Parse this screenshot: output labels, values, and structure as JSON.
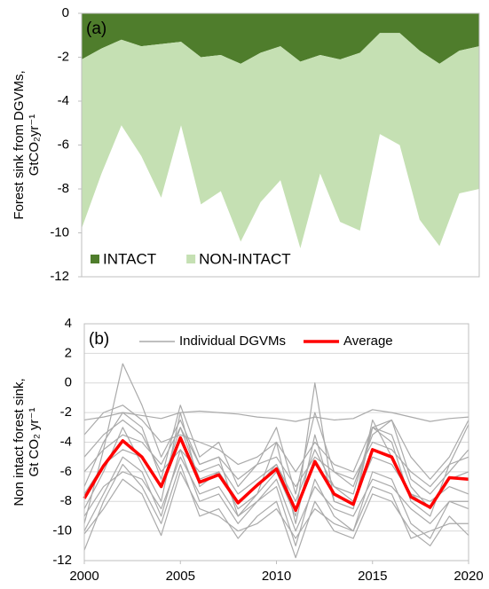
{
  "chart_data": [
    {
      "type": "area",
      "stacked": true,
      "panel_label": "(a)",
      "ylabel": [
        "Forest sink from DGVMs,",
        "GtCO₂yr⁻¹"
      ],
      "x": [
        2000,
        2001,
        2002,
        2003,
        2004,
        2005,
        2006,
        2007,
        2008,
        2009,
        2010,
        2011,
        2012,
        2013,
        2014,
        2015,
        2016,
        2017,
        2018,
        2019,
        2020
      ],
      "xlim": [
        2000,
        2020
      ],
      "ylim": [
        -12,
        0
      ],
      "yticks": [
        0,
        -2,
        -4,
        -6,
        -8,
        -10,
        -12
      ],
      "grid": false,
      "series": [
        {
          "name": "INTACT",
          "color": "#4f7d2c",
          "values": [
            -2.1,
            -1.6,
            -1.2,
            -1.5,
            -1.4,
            -1.3,
            -2.0,
            -1.9,
            -2.3,
            -1.8,
            -1.5,
            -2.2,
            -1.9,
            -2.1,
            -1.8,
            -0.9,
            -0.9,
            -1.7,
            -2.3,
            -1.7,
            -1.5
          ]
        },
        {
          "name": "NON-INTACT",
          "color": "#c5e0b3",
          "values": [
            -7.7,
            -5.7,
            -3.9,
            -5.0,
            -7.0,
            -3.8,
            -6.7,
            -6.2,
            -8.1,
            -6.8,
            -6.1,
            -8.5,
            -5.4,
            -7.4,
            -8.1,
            -4.6,
            -5.1,
            -7.7,
            -8.3,
            -6.5,
            -6.5
          ]
        }
      ]
    },
    {
      "type": "line",
      "panel_label": "(b)",
      "ylabel": [
        "Non intact forest sink,",
        "Gt CO₂ yr⁻¹"
      ],
      "x": [
        2000,
        2001,
        2002,
        2003,
        2004,
        2005,
        2006,
        2007,
        2008,
        2009,
        2010,
        2011,
        2012,
        2013,
        2014,
        2015,
        2016,
        2017,
        2018,
        2019,
        2020
      ],
      "xlim": [
        2000,
        2020
      ],
      "xticks": [
        2000,
        2005,
        2010,
        2015,
        2020
      ],
      "ylim": [
        -12,
        4
      ],
      "yticks": [
        4,
        2,
        0,
        -2,
        -4,
        -6,
        -8,
        -10,
        -12
      ],
      "grid": true,
      "series": [
        {
          "name": "Individual DGVMs",
          "color": "#aaaaaa",
          "values": [
            [
              -2.5,
              -2.3,
              -2.0,
              -2.2,
              -2.4,
              -2.0,
              -1.9,
              -2.0,
              -2.1,
              -2.3,
              -2.4,
              -2.6,
              -2.3,
              -2.5,
              -2.4,
              -1.8,
              -2.0,
              -2.3,
              -2.6,
              -2.4,
              -2.3
            ],
            [
              -9.5,
              -4.5,
              1.3,
              -1.5,
              -5.0,
              -2.5,
              -5.5,
              -5.0,
              -9.0,
              -7.5,
              -4.0,
              -9.5,
              -3.5,
              -8.0,
              -8.5,
              -3.0,
              -4.0,
              -8.0,
              -9.0,
              -5.5,
              -2.8
            ],
            [
              -7.0,
              -4.0,
              -2.0,
              -3.0,
              -6.5,
              -1.5,
              -5.0,
              -4.0,
              -7.0,
              -5.5,
              -3.0,
              -7.5,
              -2.0,
              -6.0,
              -7.0,
              -3.5,
              -2.5,
              -6.5,
              -7.5,
              -6.0,
              -4.5
            ],
            [
              -10.0,
              -7.5,
              -5.0,
              -6.0,
              -9.0,
              -4.5,
              -8.0,
              -7.5,
              -9.5,
              -8.0,
              -7.0,
              -11.0,
              -6.5,
              -9.0,
              -10.0,
              -6.0,
              -6.5,
              -9.5,
              -10.5,
              -8.0,
              -8.5
            ],
            [
              -6.0,
              -4.5,
              -3.5,
              -4.0,
              -5.5,
              -3.0,
              -5.5,
              -5.0,
              -6.5,
              -5.5,
              -5.0,
              -7.0,
              -5.0,
              -6.0,
              -6.5,
              -4.0,
              -4.5,
              -6.0,
              -7.0,
              -5.5,
              -5.0
            ],
            [
              -11.3,
              -8.0,
              -5.5,
              -7.0,
              -9.5,
              -5.5,
              -9.0,
              -8.5,
              -10.5,
              -9.0,
              -8.0,
              -11.8,
              -8.0,
              -10.0,
              -10.5,
              -7.5,
              -8.0,
              -10.0,
              -11.0,
              -9.0,
              -10.3
            ],
            [
              -8.5,
              -6.0,
              -3.0,
              -5.5,
              -8.0,
              -2.0,
              -7.0,
              -6.0,
              -8.5,
              -7.5,
              -6.0,
              -9.0,
              0.0,
              -8.0,
              -8.5,
              -2.5,
              -5.0,
              -7.5,
              -8.0,
              -7.0,
              -7.5
            ],
            [
              -5.0,
              -3.5,
              -2.5,
              -3.5,
              -6.0,
              -4.5,
              -6.0,
              -5.5,
              -7.5,
              -6.5,
              -5.5,
              -8.0,
              -4.5,
              -7.0,
              -7.5,
              -3.0,
              -3.5,
              -7.0,
              -8.5,
              -6.5,
              -6.0
            ],
            [
              -9.0,
              -7.0,
              -6.0,
              -6.5,
              -8.5,
              -5.0,
              -7.5,
              -7.0,
              -9.0,
              -8.0,
              -6.5,
              -10.0,
              -7.0,
              -8.5,
              -9.0,
              -6.5,
              -7.0,
              -8.5,
              -9.5,
              -8.0,
              -8.0
            ],
            [
              -3.5,
              -2.0,
              -1.5,
              -2.5,
              -4.0,
              -3.5,
              -4.0,
              -4.5,
              -5.5,
              -5.0,
              -4.0,
              -6.0,
              -4.0,
              -5.5,
              -6.0,
              -3.0,
              -2.5,
              -5.0,
              -6.5,
              -5.0,
              -2.5
            ],
            [
              -10.2,
              -8.5,
              -6.5,
              -7.5,
              -10.3,
              -6.0,
              -8.5,
              -9.0,
              -10.0,
              -9.5,
              -8.5,
              -10.5,
              -8.5,
              -9.5,
              -10.0,
              -7.0,
              -7.5,
              -10.5,
              -10.0,
              -9.5,
              -9.5
            ],
            [
              -7.5,
              -5.5,
              -4.5,
              -5.0,
              -7.0,
              -3.0,
              -6.5,
              -6.0,
              -8.0,
              -7.0,
              -5.5,
              -8.5,
              -5.5,
              -7.0,
              -8.0,
              -5.0,
              -5.5,
              -7.5,
              -8.5,
              -6.5,
              -6.0
            ]
          ]
        },
        {
          "name": "Average",
          "color": "#ff0000",
          "values": [
            -7.8,
            -5.6,
            -3.9,
            -5.0,
            -7.0,
            -3.7,
            -6.7,
            -6.2,
            -8.1,
            -6.9,
            -5.8,
            -8.6,
            -5.3,
            -7.5,
            -8.2,
            -4.5,
            -5.0,
            -7.7,
            -8.4,
            -6.4,
            -6.5
          ]
        }
      ]
    }
  ]
}
